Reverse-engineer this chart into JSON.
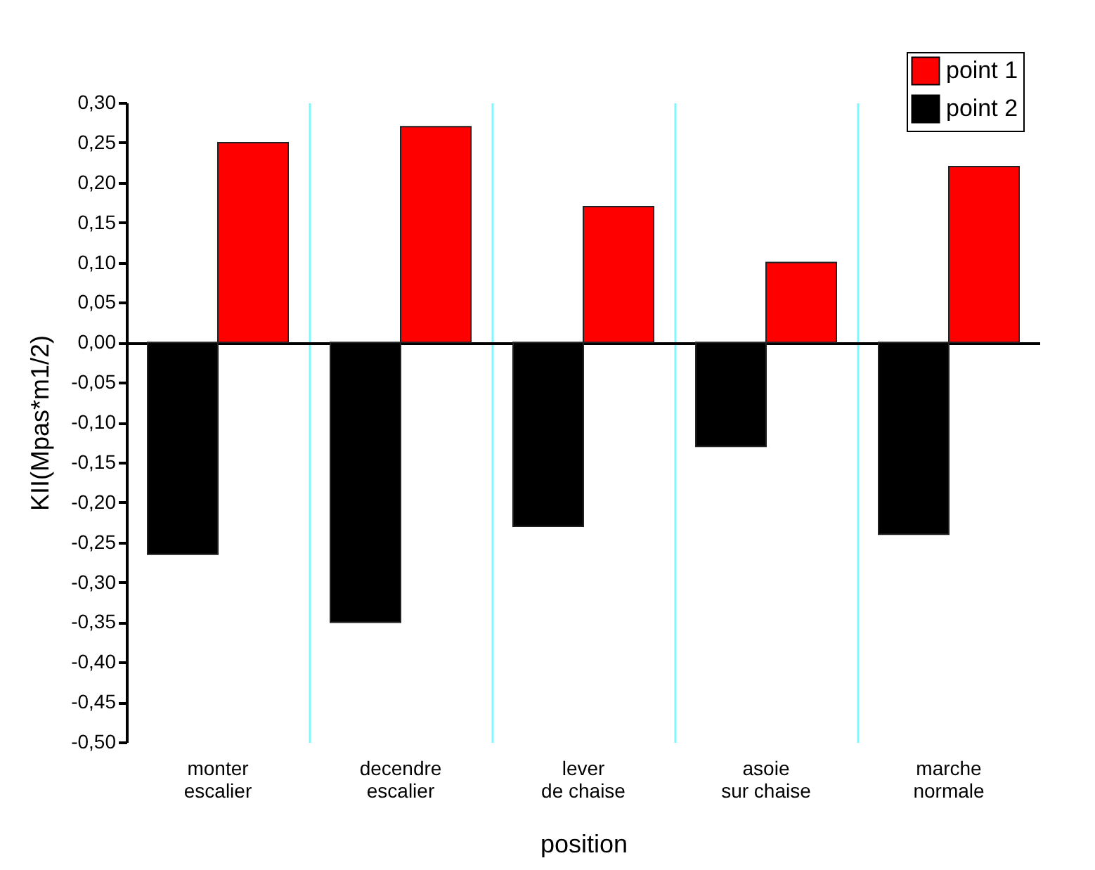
{
  "chart_data": {
    "type": "bar",
    "xlabel": "position",
    "ylabel": "KII(Mpas*m1/2)",
    "categories": [
      "monter\nescalier",
      "decendre\nescalier",
      "lever\nde chaise",
      "asoie\nsur chaise",
      "marche\nnormale"
    ],
    "series": [
      {
        "name": "point 1",
        "color": "#ff0000",
        "values": [
          0.25,
          0.27,
          0.17,
          0.1,
          0.22
        ]
      },
      {
        "name": "point 2",
        "color": "#000000",
        "values": [
          -0.265,
          -0.35,
          -0.23,
          -0.13,
          -0.24
        ]
      }
    ],
    "ylim": [
      -0.5,
      0.3
    ],
    "yticks": [
      {
        "value": -0.5,
        "label": "-0,50"
      },
      {
        "value": -0.45,
        "label": "-0,45"
      },
      {
        "value": -0.4,
        "label": "-0,40"
      },
      {
        "value": -0.35,
        "label": "-0,35"
      },
      {
        "value": -0.3,
        "label": "-0,30"
      },
      {
        "value": -0.25,
        "label": "-0,25"
      },
      {
        "value": -0.2,
        "label": "-0,20"
      },
      {
        "value": -0.15,
        "label": "-0,15"
      },
      {
        "value": -0.1,
        "label": "-0,10"
      },
      {
        "value": -0.05,
        "label": "-0,05"
      },
      {
        "value": 0,
        "label": "0,00"
      },
      {
        "value": 0.05,
        "label": "0,05"
      },
      {
        "value": 0.1,
        "label": "0,10"
      },
      {
        "value": 0.15,
        "label": "0,15"
      },
      {
        "value": 0.2,
        "label": "0,20"
      },
      {
        "value": 0.25,
        "label": "0,25"
      },
      {
        "value": 0.3,
        "label": "0,30"
      }
    ],
    "grid": "x",
    "legend": "top right"
  }
}
